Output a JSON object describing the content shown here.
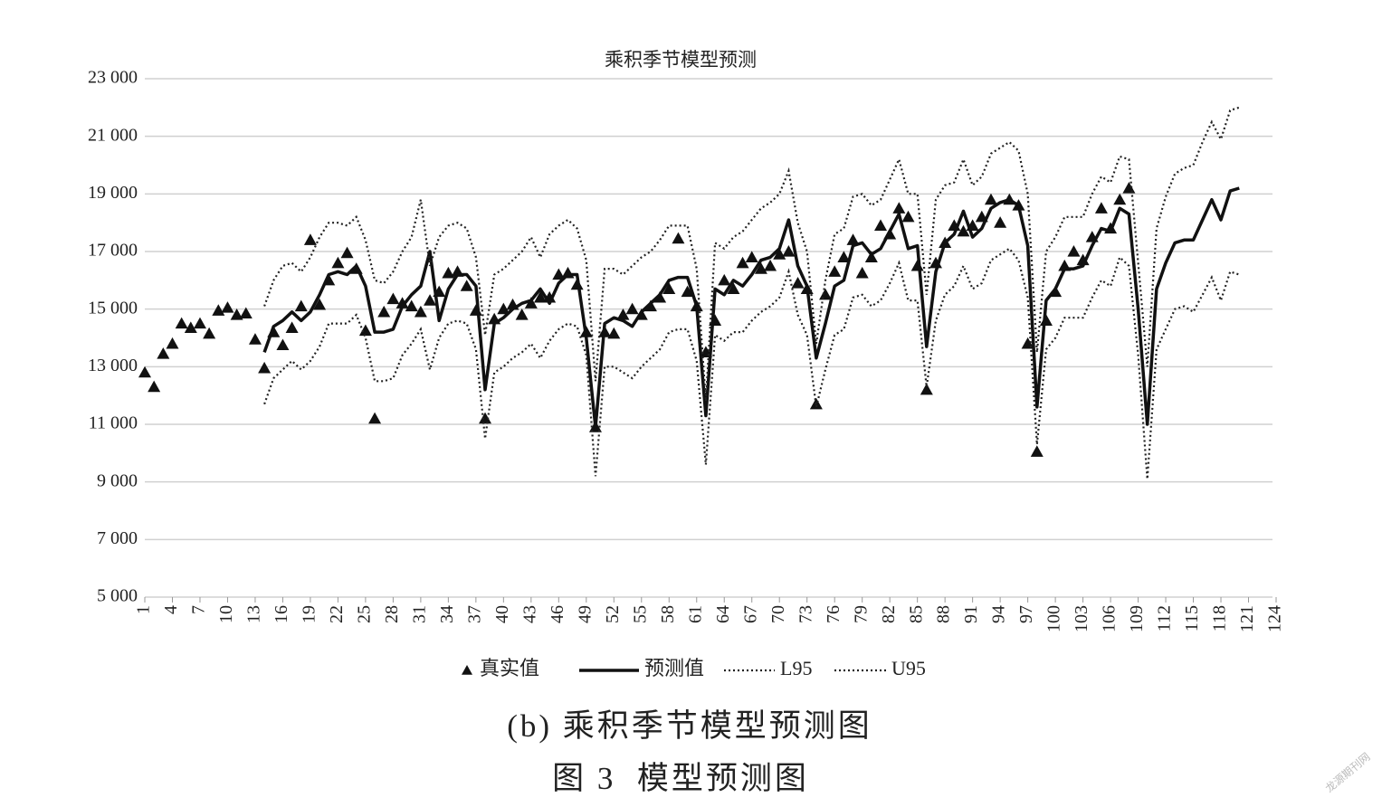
{
  "chart_data": {
    "type": "line",
    "title": "乘积季节模型预测",
    "caption": "(b) 乘积季节模型预测图",
    "figure_label": "图 3  模型预测图",
    "watermark": "龙源期刊网",
    "grid": true,
    "legend": "bottom",
    "xlim": [
      1,
      124
    ],
    "ylim": [
      5000,
      23000
    ],
    "xticks": [
      1,
      4,
      7,
      10,
      13,
      16,
      19,
      22,
      25,
      28,
      31,
      34,
      37,
      40,
      43,
      46,
      49,
      52,
      55,
      58,
      61,
      64,
      67,
      70,
      73,
      76,
      79,
      82,
      85,
      88,
      91,
      94,
      97,
      100,
      103,
      106,
      109,
      112,
      115,
      118,
      121,
      124
    ],
    "yticks": [
      {
        "value": 5000,
        "label": "5 000"
      },
      {
        "value": 7000,
        "label": "7 000"
      },
      {
        "value": 9000,
        "label": "9 000"
      },
      {
        "value": 11000,
        "label": "11 000"
      },
      {
        "value": 13000,
        "label": "13 000"
      },
      {
        "value": 15000,
        "label": "15 000"
      },
      {
        "value": 17000,
        "label": "17 000"
      },
      {
        "value": 19000,
        "label": "19 000"
      },
      {
        "value": 21000,
        "label": "21 000"
      },
      {
        "value": 23000,
        "label": "23 000"
      }
    ],
    "x": [
      1,
      2,
      3,
      4,
      5,
      6,
      7,
      8,
      9,
      10,
      11,
      12,
      13,
      14,
      15,
      16,
      17,
      18,
      19,
      20,
      21,
      22,
      23,
      24,
      25,
      26,
      27,
      28,
      29,
      30,
      31,
      32,
      33,
      34,
      35,
      36,
      37,
      38,
      39,
      40,
      41,
      42,
      43,
      44,
      45,
      46,
      47,
      48,
      49,
      50,
      51,
      52,
      53,
      54,
      55,
      56,
      57,
      58,
      59,
      60,
      61,
      62,
      63,
      64,
      65,
      66,
      67,
      68,
      69,
      70,
      71,
      72,
      73,
      74,
      75,
      76,
      77,
      78,
      79,
      80,
      81,
      82,
      83,
      84,
      85,
      86,
      87,
      88,
      89,
      90,
      91,
      92,
      93,
      94,
      95,
      96,
      97,
      98,
      99,
      100,
      101,
      102,
      103,
      104,
      105,
      106,
      107,
      108,
      109,
      110,
      111,
      112,
      113,
      114,
      115,
      116,
      117,
      118,
      119,
      120
    ],
    "series": [
      {
        "name": "真实值",
        "color": "#111111",
        "marker": "triangle",
        "values": [
          12800,
          12300,
          13450,
          13800,
          14500,
          14350,
          14500,
          14150,
          14950,
          15050,
          14800,
          14850,
          13950,
          12950,
          14200,
          13750,
          14350,
          15100,
          17400,
          15150,
          16000,
          16600,
          16950,
          16400,
          14250,
          11200,
          14900,
          15350,
          15200,
          15100,
          14900,
          15300,
          15600,
          16250,
          16300,
          15800,
          14950,
          11200,
          14650,
          15000,
          15150,
          14800,
          15200,
          15400,
          15400,
          16200,
          16250,
          15850,
          14200,
          10900,
          14200,
          14150,
          14800,
          15000,
          14800,
          15100,
          15400,
          15700,
          17450,
          15600,
          15100,
          13500,
          14600,
          16000,
          15700,
          16600,
          16800,
          16400,
          16500,
          16900,
          17000,
          15900,
          15700,
          11700,
          15500,
          16300,
          16800,
          17400,
          16250,
          16800,
          17900,
          17600,
          18500,
          18200,
          16500,
          12200,
          16600,
          17300,
          17900,
          17700,
          17900,
          18200,
          18800,
          18000,
          18800,
          18600,
          13800,
          10050,
          14600,
          15600,
          16500,
          17000,
          16700,
          17500,
          18500,
          17800,
          18800,
          19200,
          null,
          null,
          null,
          null,
          null,
          null,
          null,
          null,
          null,
          null,
          null,
          null
        ]
      },
      {
        "name": "预测值",
        "color": "#111111",
        "dash": "solid",
        "values": [
          null,
          null,
          null,
          null,
          null,
          null,
          null,
          null,
          null,
          null,
          null,
          null,
          null,
          13500,
          14400,
          14600,
          14900,
          14600,
          14900,
          15500,
          16200,
          16300,
          16200,
          16500,
          15800,
          14200,
          14200,
          14300,
          15100,
          15500,
          15800,
          17000,
          14600,
          15700,
          16200,
          16200,
          15800,
          12200,
          14500,
          14700,
          15000,
          15200,
          15300,
          15700,
          15200,
          15900,
          16200,
          16200,
          14000,
          10900,
          14500,
          14700,
          14600,
          14400,
          14900,
          15200,
          15500,
          16000,
          16100,
          16100,
          15100,
          11300,
          15700,
          15500,
          16000,
          15800,
          16200,
          16700,
          16800,
          17100,
          18100,
          16500,
          15800,
          13300,
          14500,
          15800,
          16000,
          17200,
          17300,
          16900,
          17100,
          17700,
          18300,
          17100,
          17200,
          13700,
          16300,
          17300,
          17600,
          18400,
          17500,
          17800,
          18500,
          18700,
          18800,
          18600,
          17200,
          11600,
          15300,
          15700,
          16400,
          16400,
          16500,
          17200,
          17800,
          17700,
          18500,
          18300,
          15000,
          11000,
          15700,
          16600,
          17300,
          17400,
          17400,
          18100,
          18800,
          18100,
          19100,
          19200
        ]
      },
      {
        "name": "L95",
        "color": "#222222",
        "dash": "dotted",
        "values": [
          null,
          null,
          null,
          null,
          null,
          null,
          null,
          null,
          null,
          null,
          null,
          null,
          null,
          11700,
          12600,
          12900,
          13200,
          12900,
          13200,
          13700,
          14500,
          14500,
          14500,
          14800,
          14000,
          12500,
          12500,
          12600,
          13400,
          13800,
          14300,
          12900,
          14000,
          14500,
          14600,
          14500,
          13600,
          10500,
          12800,
          13000,
          13300,
          13500,
          13800,
          13300,
          13900,
          14300,
          14500,
          14400,
          13400,
          9200,
          13000,
          13000,
          12800,
          12600,
          13000,
          13300,
          13600,
          14200,
          14300,
          14300,
          13200,
          9600,
          14100,
          13900,
          14200,
          14200,
          14600,
          14900,
          15100,
          15400,
          16300,
          14800,
          14100,
          11600,
          12900,
          14100,
          14300,
          15400,
          15500,
          15100,
          15300,
          15900,
          16600,
          15300,
          15300,
          12300,
          14600,
          15500,
          15800,
          16500,
          15700,
          15900,
          16700,
          16900,
          17100,
          16700,
          15400,
          10300,
          13600,
          14000,
          14700,
          14700,
          14700,
          15400,
          16000,
          15800,
          16800,
          16500,
          13400,
          9100,
          13600,
          14300,
          15000,
          15100,
          14900,
          15500,
          16100,
          15300,
          16300,
          16200
        ]
      },
      {
        "name": "U95",
        "color": "#222222",
        "dash": "dotted",
        "values": [
          null,
          null,
          null,
          null,
          null,
          null,
          null,
          null,
          null,
          null,
          null,
          null,
          null,
          15100,
          16000,
          16500,
          16600,
          16300,
          16800,
          17500,
          18000,
          18000,
          17900,
          18200,
          17400,
          16000,
          15900,
          16300,
          17000,
          17500,
          18800,
          16500,
          17500,
          17900,
          18000,
          17800,
          16800,
          14100,
          16200,
          16400,
          16700,
          17000,
          17500,
          16800,
          17600,
          17900,
          18100,
          17800,
          16700,
          12500,
          16400,
          16400,
          16200,
          16500,
          16800,
          17000,
          17400,
          17900,
          17900,
          17900,
          16400,
          11800,
          17300,
          17100,
          17500,
          17700,
          18100,
          18500,
          18700,
          19000,
          19800,
          18000,
          17000,
          13800,
          16000,
          17600,
          17800,
          18900,
          19000,
          18600,
          18800,
          19500,
          20200,
          19000,
          19000,
          15500,
          18800,
          19300,
          19400,
          20200,
          19300,
          19600,
          20400,
          20600,
          20800,
          20500,
          19000,
          13500,
          17000,
          17500,
          18200,
          18200,
          18200,
          19000,
          19600,
          19400,
          20300,
          20200,
          16600,
          13000,
          17800,
          18900,
          19700,
          19900,
          20000,
          20800,
          21500,
          20900,
          21900,
          22000
        ]
      }
    ]
  }
}
